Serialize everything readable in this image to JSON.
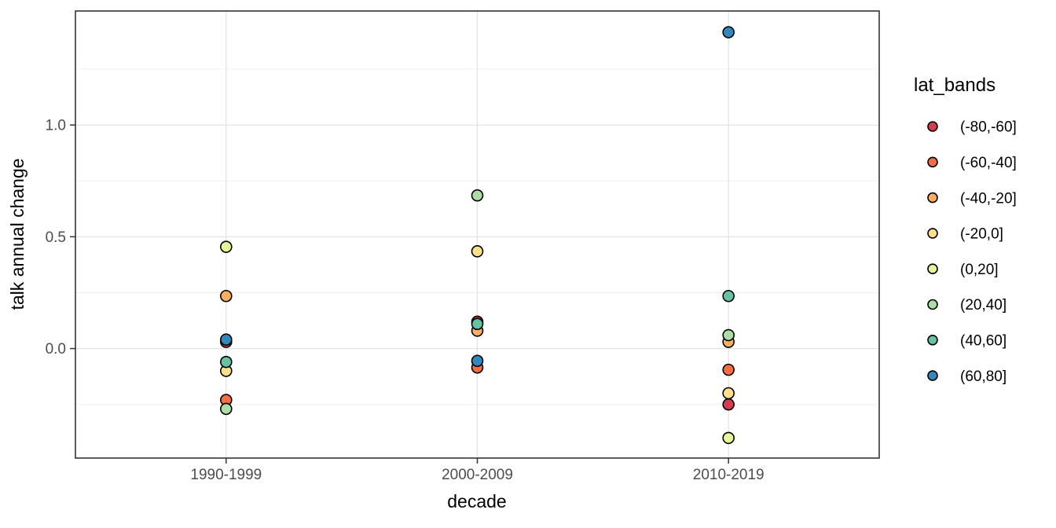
{
  "chart_data": {
    "type": "scatter",
    "title": "",
    "xlabel": "decade",
    "ylabel": "talk annual change",
    "legend_title": "lat_bands",
    "legend_position": "right",
    "categories": [
      "1990-1999",
      "2000-2009",
      "2010-2019"
    ],
    "y_ticks": [
      0.0,
      0.5,
      1.0
    ],
    "y_tick_labels": [
      "0.0",
      "0.5",
      "1.0"
    ],
    "y_minor_ticks": [
      -0.25,
      0.25,
      0.75,
      1.25
    ],
    "ylim": [
      -0.49,
      1.51
    ],
    "grid": true,
    "series": [
      {
        "name": "(-80,-60]",
        "color": "#D53E4F",
        "values": [
          0.03,
          0.12,
          -0.25
        ]
      },
      {
        "name": "(-60,-40]",
        "color": "#F46D43",
        "values": [
          -0.23,
          -0.085,
          -0.095
        ]
      },
      {
        "name": "(-40,-20]",
        "color": "#FDAE61",
        "values": [
          0.235,
          0.08,
          0.03
        ]
      },
      {
        "name": "(-20,0]",
        "color": "#FEE08B",
        "values": [
          -0.1,
          0.435,
          -0.2
        ]
      },
      {
        "name": "(0,20]",
        "color": "#E6F598",
        "values": [
          0.455,
          null,
          -0.4
        ]
      },
      {
        "name": "(20,40]",
        "color": "#ABDDA4",
        "values": [
          -0.27,
          0.685,
          0.06
        ]
      },
      {
        "name": "(40,60]",
        "color": "#66C2A5",
        "values": [
          -0.06,
          0.11,
          0.235
        ]
      },
      {
        "name": "(60,80]",
        "color": "#3288BD",
        "values": [
          0.04,
          -0.055,
          1.415
        ]
      }
    ],
    "point_style": {
      "radius": 7,
      "stroke": "#000000",
      "stroke_width": 1.6
    },
    "legend_key_radius": 6,
    "colors": {
      "background": "#FFFFFF",
      "panel_background": "#FFFFFF",
      "panel_border": "#333333",
      "grid_major": "#E3E3E3",
      "grid_minor": "#F0F0F0",
      "tick_mark": "#333333",
      "tick_label": "#4D4D4D",
      "text": "#000000"
    }
  }
}
